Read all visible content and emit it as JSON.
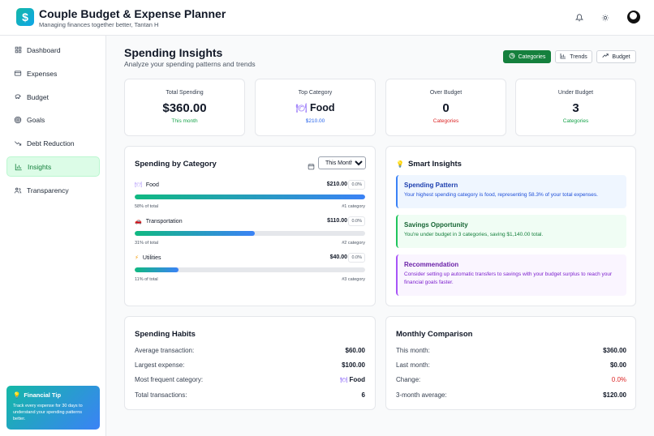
{
  "header": {
    "logo_glyph": "$",
    "title": "Couple Budget & Expense Planner",
    "subtitle": "Managing finances together better, Tantan H",
    "icons": [
      "bell-icon",
      "sun-icon",
      "avatar"
    ]
  },
  "sidebar": {
    "items": [
      {
        "label": "Dashboard",
        "icon": "grid-icon"
      },
      {
        "label": "Expenses",
        "icon": "credit-card-icon"
      },
      {
        "label": "Budget",
        "icon": "piggy-bank-icon"
      },
      {
        "label": "Goals",
        "icon": "target-icon"
      },
      {
        "label": "Debt Reduction",
        "icon": "trend-down-icon"
      },
      {
        "label": "Insights",
        "icon": "bar-chart-icon",
        "active": true
      },
      {
        "label": "Transparency",
        "icon": "users-icon"
      }
    ],
    "tip": {
      "title": "Financial Tip",
      "text": "Track every expense for 30 days to understand your spending patterns better."
    }
  },
  "main": {
    "title": "Spending Insights",
    "subtitle": "Analyze your spending patterns and trends",
    "view_buttons": [
      {
        "label": "Categories",
        "active": true
      },
      {
        "label": "Trends",
        "active": false
      },
      {
        "label": "Budget",
        "active": false
      }
    ],
    "stats": [
      {
        "label": "Total Spending",
        "value": "$360.00",
        "note": "This month",
        "note_color": "green"
      },
      {
        "label": "Top Category",
        "value": "Food",
        "note": "$210.00",
        "note_color": "blue",
        "icon": "plate-icon"
      },
      {
        "label": "Over Budget",
        "value": "0",
        "note": "Categories",
        "note_color": "red"
      },
      {
        "label": "Under Budget",
        "value": "3",
        "note": "Categories",
        "note_color": "green"
      }
    ],
    "spending_by_category": {
      "title": "Spending by Category",
      "period_options": [
        "This Month"
      ],
      "period_selected": "This Month",
      "categories": [
        {
          "name": "Food",
          "icon": "plate-icon",
          "amount": "$210.00",
          "pct_badge": "0.0%",
          "share_text": "58% of total",
          "rank_text": "#1 category",
          "share": 1.0
        },
        {
          "name": "Transportation",
          "icon": "car-icon",
          "amount": "$110.00",
          "pct_badge": "0.0%",
          "share_text": "31% of total",
          "rank_text": "#2 category",
          "share": 0.52
        },
        {
          "name": "Utilities",
          "icon": "lightning-icon",
          "amount": "$40.00",
          "pct_badge": "0.0%",
          "share_text": "11% of total",
          "rank_text": "#3 category",
          "share": 0.19
        }
      ]
    },
    "smart_insights": {
      "title": "Smart Insights",
      "items": [
        {
          "title": "Spending Pattern",
          "text": "Your highest spending category is food, representing 58.3% of your total expenses.",
          "tone": "blue"
        },
        {
          "title": "Savings Opportunity",
          "text": "You're under budget in 3 categories, saving $1,140.00 total.",
          "tone": "green"
        },
        {
          "title": "Recommendation",
          "text": "Consider setting up automatic transfers to savings with your budget surplus to reach your financial goals faster.",
          "tone": "purple"
        }
      ]
    },
    "spending_habits": {
      "title": "Spending Habits",
      "rows": [
        {
          "label": "Average transaction:",
          "value": "$60.00"
        },
        {
          "label": "Largest expense:",
          "value": "$100.00"
        },
        {
          "label": "Most frequent category:",
          "value": "Food",
          "icon": "plate-icon"
        },
        {
          "label": "Total transactions:",
          "value": "6"
        }
      ]
    },
    "monthly_comparison": {
      "title": "Monthly Comparison",
      "rows": [
        {
          "label": "This month:",
          "value": "$360.00"
        },
        {
          "label": "Last month:",
          "value": "$0.00"
        },
        {
          "label": "Change:",
          "value": "0.0%",
          "color": "red"
        },
        {
          "label": "3-month average:",
          "value": "$120.00"
        }
      ]
    }
  }
}
